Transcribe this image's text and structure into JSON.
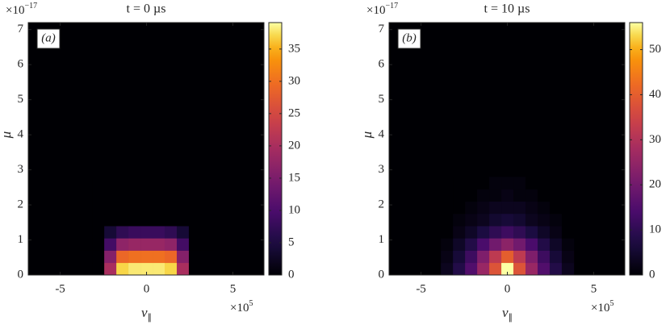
{
  "chart_data": [
    {
      "type": "heatmap",
      "title": "t = 0 µs",
      "panel_label": "(a)",
      "xlabel": "v",
      "xlabel_subscript": "∥",
      "ylabel": "μ",
      "x_offset_text": "×10",
      "x_offset_exponent": "5",
      "y_offset_text": "×10",
      "y_offset_exponent": "−17",
      "colormap": "inferno",
      "xlim": [
        -6.85,
        6.8
      ],
      "ylim": [
        0,
        7.2
      ],
      "xticks": [
        -5,
        0,
        5
      ],
      "yticks": [
        0,
        1,
        2,
        3,
        4,
        5,
        6,
        7
      ],
      "zlim": [
        0,
        39.1
      ],
      "zticks": [
        0,
        5,
        10,
        15,
        20,
        25,
        30,
        35
      ],
      "x_edges": [
        -3.85,
        -3.15,
        -2.45,
        -1.75,
        -1.05,
        -0.35,
        0.35,
        1.05,
        1.75,
        2.45,
        3.15,
        3.85
      ],
      "y_edges": [
        0,
        0.35,
        0.7,
        1.05,
        1.4,
        1.75,
        2.1,
        2.45,
        2.8
      ],
      "z": [
        [
          0,
          0,
          20,
          37,
          38,
          38,
          38,
          37,
          20,
          0,
          0
        ],
        [
          0,
          0,
          16,
          29,
          30,
          30,
          30,
          29,
          16,
          0,
          0
        ],
        [
          0,
          0,
          9,
          17,
          18,
          18,
          18,
          17,
          9,
          0,
          0
        ],
        [
          0,
          0,
          4,
          7,
          8,
          8,
          8,
          7,
          4,
          0,
          0
        ],
        [
          0,
          0,
          0,
          0,
          0,
          0,
          0,
          0,
          0,
          0,
          0
        ],
        [
          0,
          0,
          0,
          0,
          0,
          0,
          0,
          0,
          0,
          0,
          0
        ],
        [
          0,
          0,
          0,
          0,
          0,
          0,
          0,
          0,
          0,
          0,
          0
        ],
        [
          0,
          0,
          0,
          0,
          0,
          0,
          0,
          0,
          0,
          0,
          0
        ]
      ]
    },
    {
      "type": "heatmap",
      "title": "t = 10 µs",
      "panel_label": "(b)",
      "xlabel": "v",
      "xlabel_subscript": "∥",
      "ylabel": "μ",
      "x_offset_text": "×10",
      "x_offset_exponent": "5",
      "y_offset_text": "×10",
      "y_offset_exponent": "−17",
      "colormap": "inferno",
      "xlim": [
        -6.85,
        6.8
      ],
      "ylim": [
        0,
        7.2
      ],
      "xticks": [
        -5,
        0,
        5
      ],
      "yticks": [
        0,
        1,
        2,
        3,
        4,
        5,
        6,
        7
      ],
      "zlim": [
        0,
        56
      ],
      "zticks": [
        0,
        10,
        20,
        30,
        40,
        50
      ],
      "x_edges": [
        -3.85,
        -3.15,
        -2.45,
        -1.75,
        -1.05,
        -0.35,
        0.35,
        1.05,
        1.75,
        2.45,
        3.15,
        3.85
      ],
      "y_edges": [
        0,
        0.35,
        0.7,
        1.05,
        1.4,
        1.75,
        2.1,
        2.45,
        2.8
      ],
      "z": [
        [
          3,
          8,
          15,
          26,
          38,
          56,
          38,
          26,
          15,
          8,
          3
        ],
        [
          2,
          6,
          12,
          22,
          32,
          40,
          32,
          22,
          12,
          6,
          2
        ],
        [
          1,
          4,
          8,
          14,
          20,
          24,
          20,
          14,
          8,
          4,
          1
        ],
        [
          0,
          2,
          4,
          7,
          10,
          12,
          10,
          7,
          4,
          2,
          0
        ],
        [
          0,
          1,
          2,
          3,
          5,
          6,
          5,
          3,
          2,
          1,
          0
        ],
        [
          0,
          0,
          1,
          2,
          3,
          3,
          3,
          2,
          1,
          0,
          0
        ],
        [
          0,
          0,
          0,
          1,
          1,
          2,
          1,
          1,
          0,
          0,
          0
        ],
        [
          0,
          0,
          0,
          0,
          1,
          1,
          1,
          0,
          0,
          0,
          0
        ]
      ]
    }
  ]
}
